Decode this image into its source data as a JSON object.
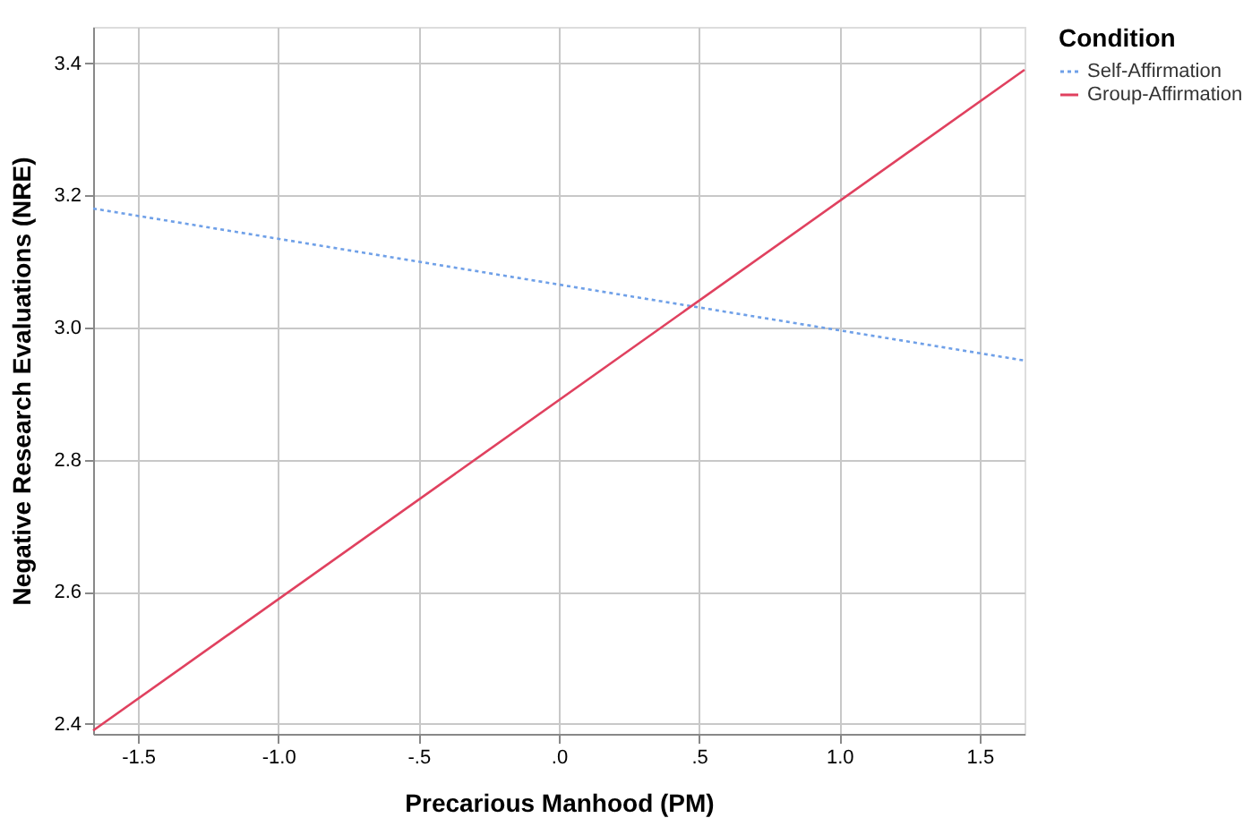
{
  "chart_data": {
    "type": "line",
    "xlabel": "Precarious Manhood (PM)",
    "ylabel": "Negative Research Evaluations (NRE)",
    "legend_title": "Condition",
    "x": [
      -1.66,
      1.66
    ],
    "series": [
      {
        "name": "Self-Affirmation",
        "color": "#6fa0e8",
        "values": [
          3.18,
          2.95
        ],
        "line_style": "dotted"
      },
      {
        "name": "Group-Affirmation",
        "color": "#e0415f",
        "values": [
          2.39,
          3.39
        ],
        "line_style": "solid"
      }
    ],
    "xlim": [
      -1.66,
      1.66
    ],
    "xticks": [
      {
        "value": -1.5,
        "label": "-1.5"
      },
      {
        "value": -1.0,
        "label": "-1.0"
      },
      {
        "value": -0.5,
        "label": "-.5"
      },
      {
        "value": 0,
        "label": ".0"
      },
      {
        "value": 0.5,
        "label": ".5"
      },
      {
        "value": 1.0,
        "label": "1.0"
      },
      {
        "value": 1.5,
        "label": "1.5"
      }
    ],
    "ylim": [
      2.385,
      3.455
    ],
    "yticks": [
      {
        "value": 2.4,
        "label": "2.4"
      },
      {
        "value": 2.6,
        "label": "2.6"
      },
      {
        "value": 2.8,
        "label": "2.8"
      },
      {
        "value": 3.0,
        "label": "3.0"
      },
      {
        "value": 3.2,
        "label": "3.2"
      },
      {
        "value": 3.4,
        "label": "3.4"
      }
    ],
    "grid": true,
    "legend": "top right",
    "marker": "none"
  }
}
